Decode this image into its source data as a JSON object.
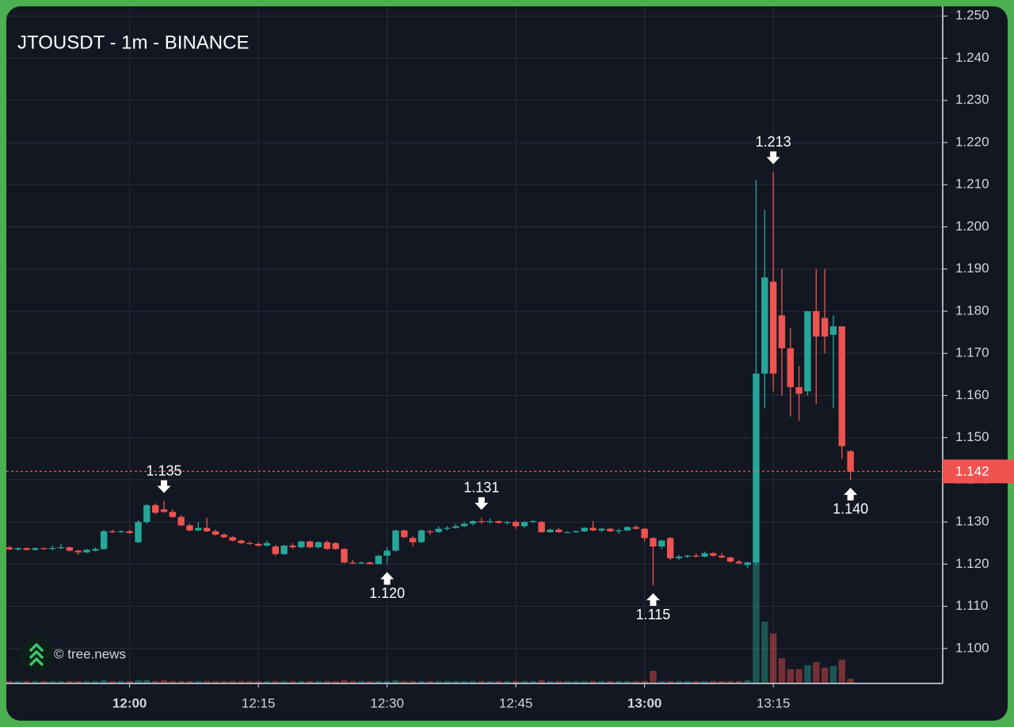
{
  "chart_data": {
    "type": "candlestick",
    "title": "JTOUSDT - 1m - BINANCE",
    "watermark": "© tree.news",
    "categories": [
      null,
      null,
      null,
      null,
      null,
      null,
      null,
      null,
      null,
      null,
      null,
      null,
      null,
      null,
      "12:00",
      null,
      null,
      null,
      null,
      null,
      null,
      null,
      null,
      null,
      null,
      null,
      null,
      null,
      null,
      "12:15",
      null,
      null,
      null,
      null,
      null,
      null,
      null,
      null,
      null,
      null,
      null,
      null,
      null,
      null,
      "12:30",
      null,
      null,
      null,
      null,
      null,
      null,
      null,
      null,
      null,
      null,
      null,
      null,
      null,
      null,
      "12:45",
      null,
      null,
      null,
      null,
      null,
      null,
      null,
      null,
      null,
      null,
      null,
      null,
      null,
      null,
      "13:00",
      null,
      null,
      null,
      null,
      null,
      null,
      null,
      null,
      null,
      null,
      null,
      null,
      null,
      null,
      "13:15",
      null,
      null,
      null,
      null,
      null,
      null,
      null,
      null,
      null
    ],
    "open": [
      1.124,
      1.1235,
      1.1238,
      1.1234,
      1.1238,
      1.1236,
      1.1238,
      1.124,
      1.1232,
      1.1228,
      1.1232,
      1.1236,
      1.1278,
      1.1276,
      1.1278,
      1.1252,
      1.13,
      1.134,
      1.133,
      1.1324,
      1.1312,
      1.1292,
      1.128,
      1.1286,
      1.1278,
      1.127,
      1.1264,
      1.1256,
      1.125,
      1.1248,
      1.1244,
      1.1242,
      1.1224,
      1.1244,
      1.124,
      1.1254,
      1.124,
      1.1252,
      1.125,
      1.1236,
      1.1204,
      1.1202,
      1.1204,
      1.12,
      1.122,
      1.1232,
      1.128,
      1.1262,
      1.1252,
      1.1278,
      1.1276,
      1.1284,
      1.1286,
      1.129,
      1.1296,
      1.1302,
      1.13,
      1.1302,
      1.1298,
      1.13,
      1.129,
      1.13,
      1.13,
      1.1276,
      1.1282,
      1.1276,
      1.1276,
      1.1278,
      1.1286,
      1.128,
      1.1284,
      1.1278,
      1.128,
      1.1288,
      1.1284,
      1.1262,
      1.1242,
      1.1262,
      1.1214,
      1.1218,
      1.122,
      1.1218,
      1.1226,
      1.122,
      1.1216,
      1.1206,
      1.1198,
      1.1204,
      1.1652,
      1.187,
      1.179,
      1.1712,
      1.162,
      1.161,
      1.18,
      1.1784,
      1.1744,
      1.1764,
      1.1468
    ],
    "high": [
      1.1243,
      1.124,
      1.124,
      1.124,
      1.124,
      1.1244,
      1.1248,
      1.1242,
      1.1234,
      1.1236,
      1.124,
      1.1282,
      1.1282,
      1.128,
      1.1282,
      1.1304,
      1.1342,
      1.1344,
      1.135,
      1.133,
      1.1316,
      1.1296,
      1.13,
      1.131,
      1.1282,
      1.1274,
      1.1266,
      1.1258,
      1.1254,
      1.1252,
      1.1256,
      1.1246,
      1.1246,
      1.125,
      1.1256,
      1.1256,
      1.1254,
      1.1256,
      1.1252,
      1.1238,
      1.121,
      1.1206,
      1.1206,
      1.1222,
      1.124,
      1.1282,
      1.1282,
      1.1266,
      1.1282,
      1.1282,
      1.129,
      1.129,
      1.1296,
      1.13,
      1.1304,
      1.131,
      1.1308,
      1.1304,
      1.1302,
      1.1304,
      1.1302,
      1.1304,
      1.1302,
      1.1284,
      1.1286,
      1.1278,
      1.128,
      1.1288,
      1.1302,
      1.1286,
      1.1286,
      1.1284,
      1.129,
      1.1292,
      1.1286,
      1.1264,
      1.1258,
      1.1264,
      1.1222,
      1.1222,
      1.1226,
      1.123,
      1.1228,
      1.1226,
      1.1218,
      1.121,
      1.1206,
      1.2112,
      1.204,
      1.213,
      1.19,
      1.176,
      1.167,
      1.18,
      1.19,
      1.19,
      1.179,
      1.1764,
      1.147
    ],
    "low": [
      1.1233,
      1.1232,
      1.1233,
      1.1232,
      1.1234,
      1.1234,
      1.1236,
      1.123,
      1.1222,
      1.1226,
      1.123,
      1.1234,
      1.1274,
      1.1274,
      1.1272,
      1.125,
      1.1296,
      1.1318,
      1.1322,
      1.131,
      1.129,
      1.1278,
      1.1278,
      1.1276,
      1.1268,
      1.1262,
      1.1254,
      1.1248,
      1.1246,
      1.1242,
      1.1242,
      1.122,
      1.1222,
      1.1236,
      1.1238,
      1.1238,
      1.1238,
      1.1234,
      1.1234,
      1.1202,
      1.12,
      1.12,
      1.12,
      1.12,
      1.12,
      1.123,
      1.1262,
      1.1242,
      1.125,
      1.127,
      1.1274,
      1.128,
      1.1284,
      1.1288,
      1.1292,
      1.1296,
      1.1296,
      1.1296,
      1.1294,
      1.1284,
      1.1286,
      1.1298,
      1.1274,
      1.1274,
      1.1274,
      1.1274,
      1.1274,
      1.1276,
      1.1278,
      1.1276,
      1.1276,
      1.1272,
      1.1278,
      1.1282,
      1.1254,
      1.115,
      1.1236,
      1.121,
      1.121,
      1.1214,
      1.1216,
      1.1216,
      1.1218,
      1.1214,
      1.1204,
      1.12,
      1.119,
      1.1198,
      1.157,
      1.161,
      1.16,
      1.155,
      1.154,
      1.16,
      1.158,
      1.17,
      1.157,
      1.145,
      1.14
    ],
    "close": [
      1.1235,
      1.1238,
      1.1234,
      1.1238,
      1.1236,
      1.1238,
      1.124,
      1.1232,
      1.1228,
      1.1234,
      1.1236,
      1.1278,
      1.1276,
      1.1278,
      1.1274,
      1.13,
      1.134,
      1.1322,
      1.1324,
      1.1312,
      1.1292,
      1.128,
      1.1286,
      1.1278,
      1.127,
      1.1264,
      1.1256,
      1.125,
      1.1248,
      1.1244,
      1.125,
      1.1224,
      1.1244,
      1.124,
      1.1254,
      1.124,
      1.1252,
      1.1236,
      1.1236,
      1.1204,
      1.1202,
      1.1204,
      1.12,
      1.122,
      1.1232,
      1.128,
      1.1264,
      1.1252,
      1.128,
      1.1276,
      1.1284,
      1.1286,
      1.129,
      1.1296,
      1.1302,
      1.13,
      1.1302,
      1.1298,
      1.13,
      1.129,
      1.13,
      1.1302,
      1.1276,
      1.1282,
      1.1276,
      1.1276,
      1.1278,
      1.1286,
      1.128,
      1.1284,
      1.1278,
      1.128,
      1.1288,
      1.1284,
      1.1262,
      1.1242,
      1.1256,
      1.1214,
      1.1218,
      1.122,
      1.1218,
      1.1226,
      1.122,
      1.1216,
      1.1206,
      1.1202,
      1.1204,
      1.1652,
      1.188,
      1.1652,
      1.1712,
      1.162,
      1.1604,
      1.18,
      1.174,
      1.174,
      1.1764,
      1.148,
      1.142
    ],
    "volume": [
      2,
      2,
      2,
      2,
      2,
      2,
      2,
      2,
      2,
      2,
      2,
      3,
      2,
      2,
      2,
      3,
      3,
      2,
      3,
      2,
      2,
      2,
      2,
      2,
      2,
      2,
      2,
      2,
      2,
      2,
      2,
      2,
      2,
      2,
      2,
      2,
      2,
      2,
      2,
      3,
      2,
      2,
      2,
      2,
      2,
      3,
      2,
      2,
      2,
      2,
      2,
      2,
      2,
      2,
      2,
      2,
      2,
      2,
      2,
      2,
      2,
      2,
      3,
      2,
      2,
      2,
      2,
      2,
      2,
      2,
      2,
      2,
      2,
      2,
      2,
      15,
      2,
      2,
      2,
      2,
      2,
      2,
      2,
      2,
      2,
      2,
      3,
      156,
      77,
      62,
      31,
      17,
      17,
      22,
      26,
      19,
      21,
      29,
      5
    ],
    "high_labels": [
      null,
      null,
      null,
      null,
      null,
      null,
      null,
      null,
      null,
      null,
      null,
      null,
      null,
      null,
      null,
      null,
      null,
      null,
      "1.135",
      null,
      null,
      null,
      null,
      null,
      null,
      null,
      null,
      null,
      null,
      null,
      null,
      null,
      null,
      null,
      null,
      null,
      null,
      null,
      null,
      null,
      null,
      null,
      null,
      null,
      null,
      null,
      null,
      null,
      null,
      null,
      null,
      null,
      null,
      null,
      null,
      "1.131",
      null,
      null,
      null,
      null,
      null,
      null,
      null,
      null,
      null,
      null,
      null,
      null,
      null,
      null,
      null,
      null,
      null,
      null,
      null,
      null,
      null,
      null,
      null,
      null,
      null,
      null,
      null,
      null,
      null,
      null,
      null,
      null,
      null,
      "1.213",
      null,
      null,
      null,
      null,
      null,
      null,
      null,
      null,
      null
    ],
    "low_labels": [
      null,
      null,
      null,
      null,
      null,
      null,
      null,
      null,
      null,
      null,
      null,
      null,
      null,
      null,
      null,
      null,
      null,
      null,
      null,
      null,
      null,
      null,
      null,
      null,
      null,
      null,
      null,
      null,
      null,
      null,
      null,
      null,
      null,
      null,
      null,
      null,
      null,
      null,
      null,
      null,
      null,
      null,
      null,
      null,
      "1.120",
      null,
      null,
      null,
      null,
      null,
      null,
      null,
      null,
      null,
      null,
      null,
      null,
      null,
      null,
      null,
      null,
      null,
      null,
      null,
      null,
      null,
      null,
      null,
      null,
      null,
      null,
      null,
      null,
      null,
      null,
      "1.115",
      null,
      null,
      null,
      null,
      null,
      null,
      null,
      null,
      null,
      null,
      null,
      null,
      null,
      null,
      null,
      null,
      null,
      null,
      null,
      null,
      null,
      null,
      "1.140"
    ],
    "up_color": "#26a69a",
    "down_color": "#ef5350",
    "ylim": [
      1.0919,
      1.2523
    ],
    "yticks": [
      {
        "value": 1.1,
        "label": "1.100"
      },
      {
        "value": 1.11,
        "label": "1.110"
      },
      {
        "value": 1.12,
        "label": "1.120"
      },
      {
        "value": 1.13,
        "label": "1.130"
      },
      {
        "value": 1.14,
        "label": "1.140"
      },
      {
        "value": 1.15,
        "label": "1.150"
      },
      {
        "value": 1.16,
        "label": "1.160"
      },
      {
        "value": 1.17,
        "label": "1.170"
      },
      {
        "value": 1.18,
        "label": "1.180"
      },
      {
        "value": 1.19,
        "label": "1.190"
      },
      {
        "value": 1.2,
        "label": "1.200"
      },
      {
        "value": 1.21,
        "label": "1.210"
      },
      {
        "value": 1.22,
        "label": "1.220"
      },
      {
        "value": 1.23,
        "label": "1.230"
      },
      {
        "value": 1.24,
        "label": "1.240"
      },
      {
        "value": 1.25,
        "label": "1.250"
      }
    ],
    "grid": true
  }
}
